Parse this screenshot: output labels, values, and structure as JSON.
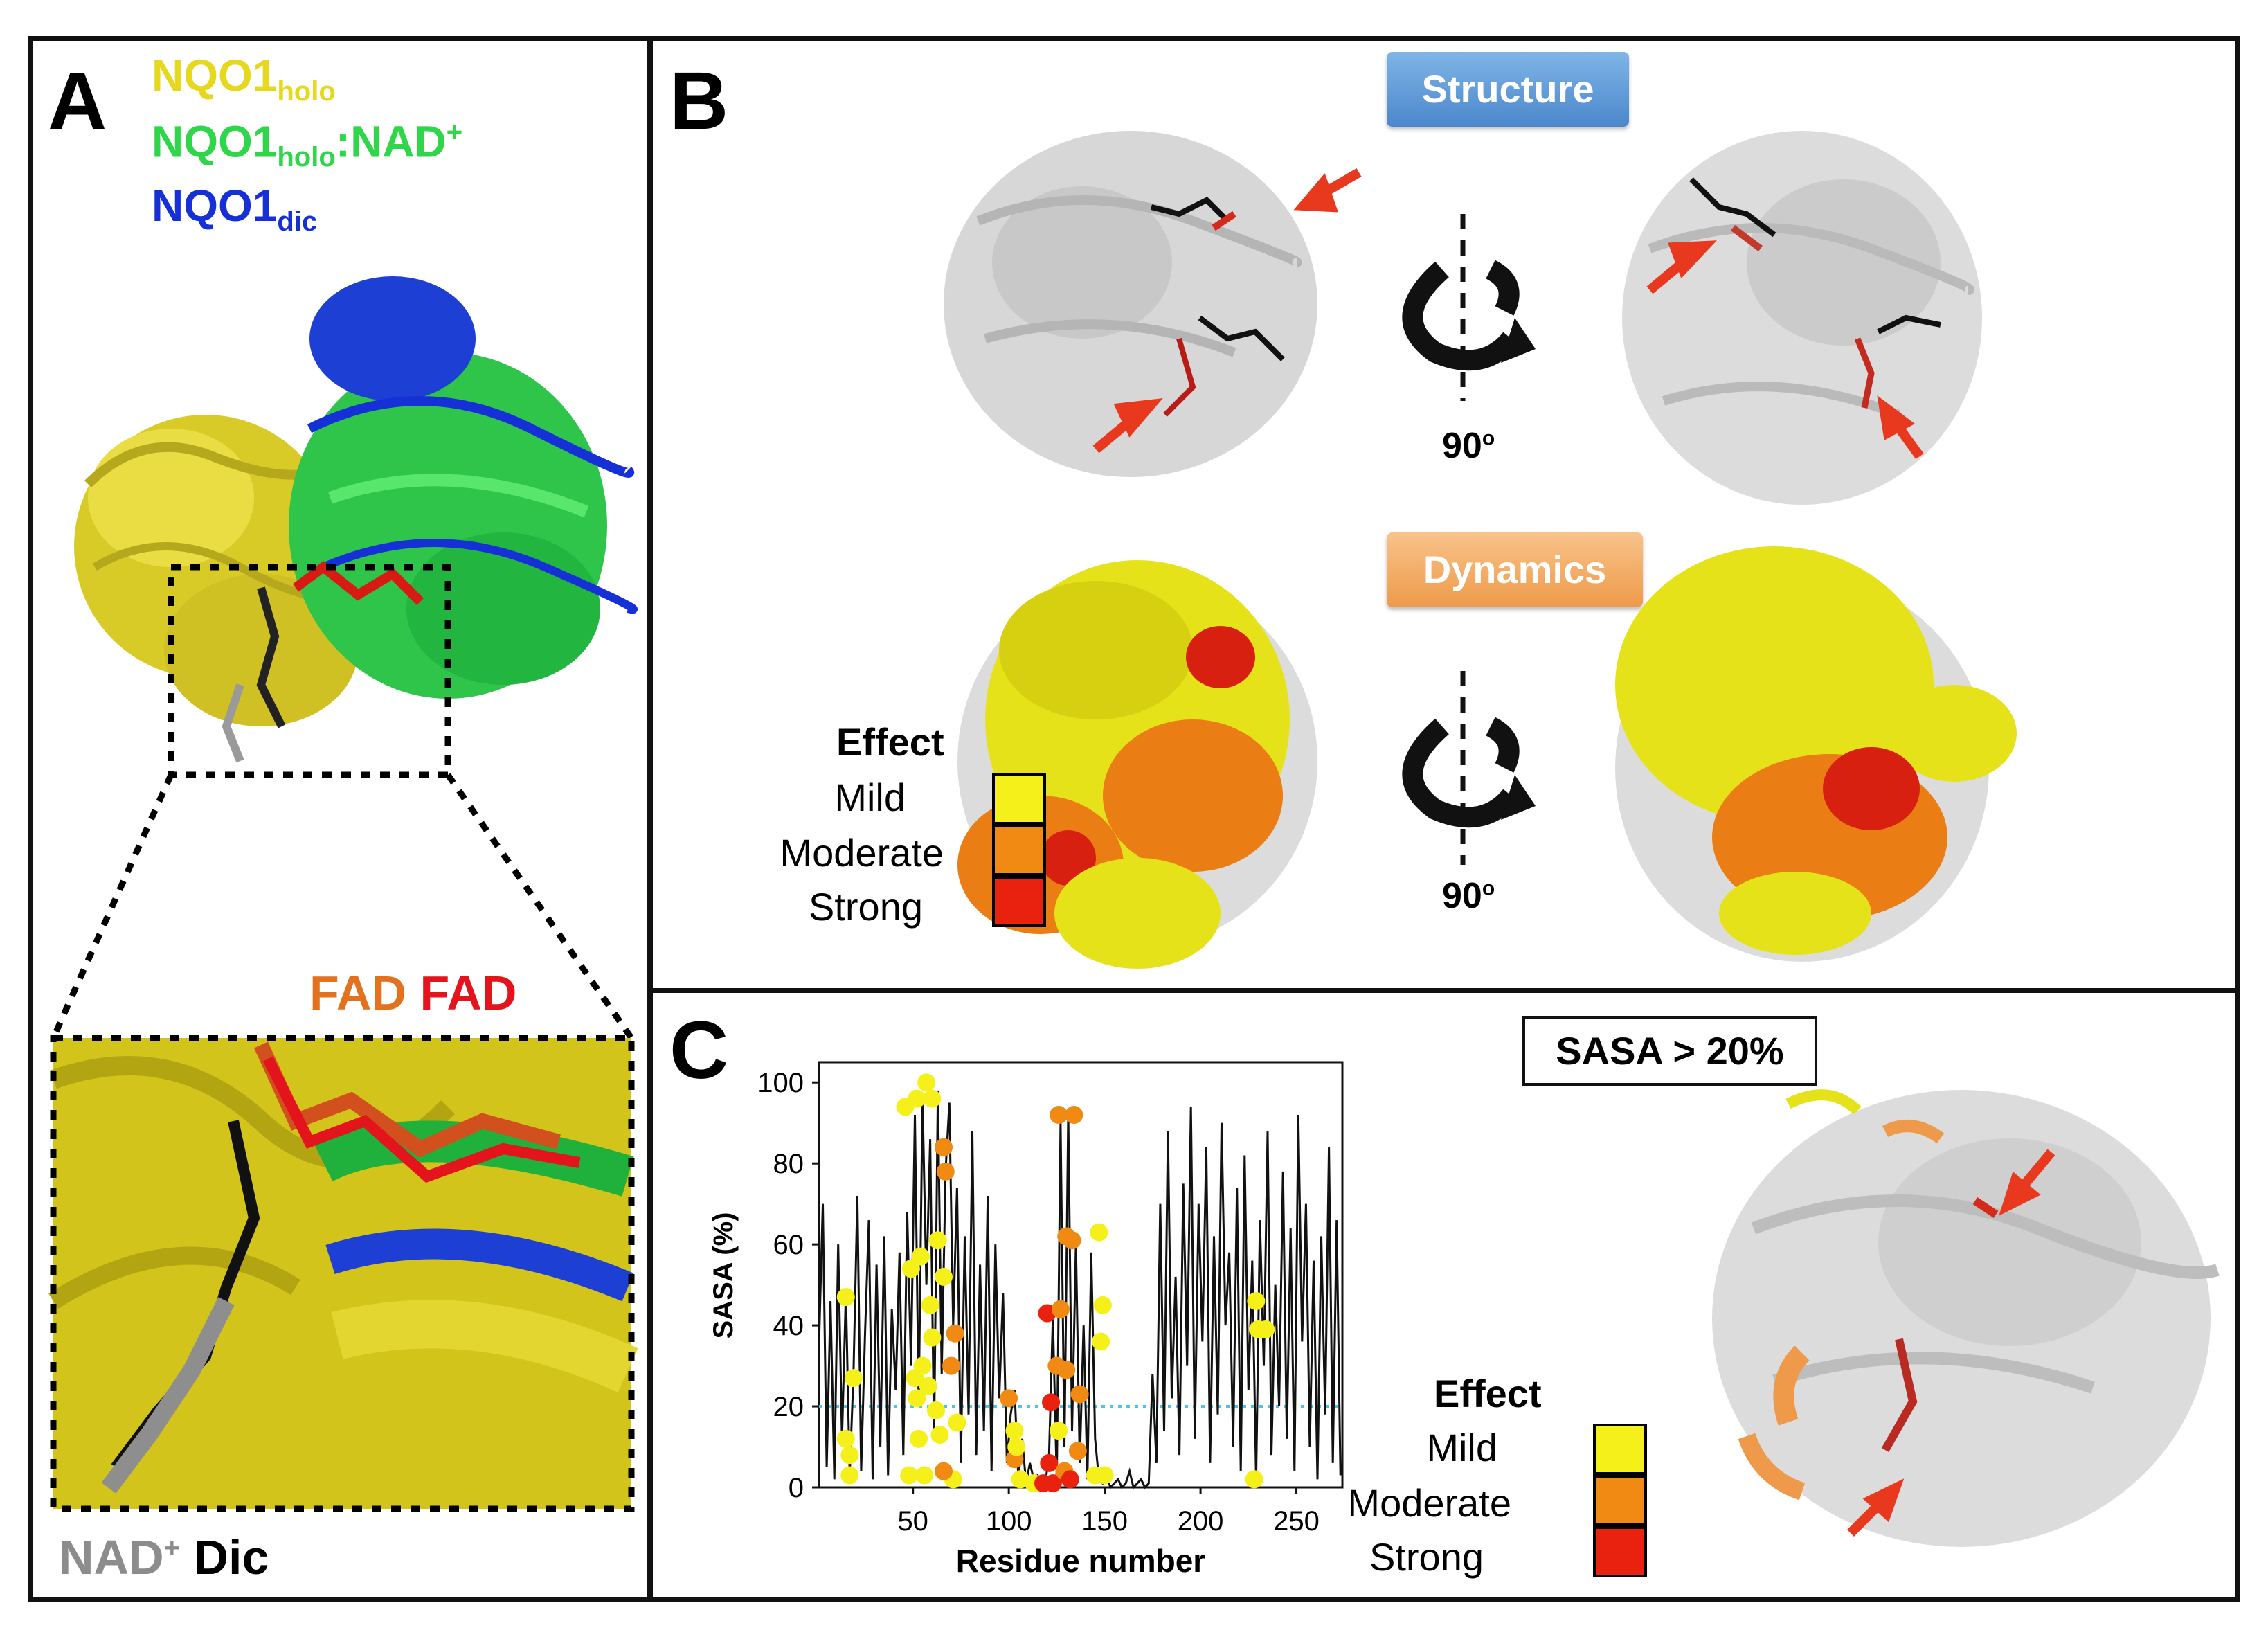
{
  "figure": {
    "panel_a": {
      "label": "A",
      "legend": [
        {
          "main": "NQO1",
          "sub": "holo",
          "tail": "",
          "sup": "",
          "color": "#e6d81e"
        },
        {
          "main": "NQO1",
          "sub": "holo",
          "tail": ":NAD",
          "sup": "+",
          "color": "#2fd64a"
        },
        {
          "main": "NQO1",
          "sub": "dic",
          "tail": "",
          "sup": "",
          "color": "#1530d6"
        }
      ],
      "fad_labels": [
        {
          "text": "FAD",
          "color": "#e4711e"
        },
        {
          "text": "FAD",
          "color": "#e3141c"
        }
      ],
      "bottom_labels": {
        "nad": "NAD",
        "nad_sup": "+",
        "nad_color": "#8c8c8c",
        "dic": "Dic",
        "dic_color": "#000000"
      }
    },
    "panel_b": {
      "label": "B",
      "structure_badge": "Structure",
      "dynamics_badge": "Dynamics",
      "rotation_label": "90",
      "rotation_sup": "o",
      "effect_legend": {
        "title": "Effect",
        "items": [
          {
            "label": "Mild",
            "color": "#f5f01a"
          },
          {
            "label": "Moderate",
            "color": "#f08a12"
          },
          {
            "label": "Strong",
            "color": "#e8220f"
          }
        ]
      }
    },
    "panel_c": {
      "label": "C",
      "sasa_box": "SASA > 20%",
      "effect_legend": {
        "title": "Effect",
        "items": [
          {
            "label": "Mild",
            "color": "#f5f01a"
          },
          {
            "label": "Moderate",
            "color": "#f08a12"
          },
          {
            "label": "Strong",
            "color": "#e8220f"
          }
        ]
      }
    }
  },
  "chart_data": {
    "type": "line",
    "title": "",
    "xlabel": "Residue number",
    "ylabel": "SASA (%)",
    "xlim": [
      1,
      274
    ],
    "ylim": [
      0,
      105
    ],
    "xticks": [
      50,
      100,
      150,
      200,
      250
    ],
    "yticks": [
      0,
      20,
      40,
      60,
      80,
      100
    ],
    "threshold": 20,
    "series": [
      {
        "name": "SASA per residue",
        "color": "#000000",
        "x": [
          1,
          3,
          5,
          7,
          9,
          11,
          13,
          15,
          17,
          19,
          21,
          23,
          25,
          27,
          29,
          31,
          33,
          35,
          37,
          39,
          41,
          43,
          45,
          47,
          49,
          51,
          53,
          55,
          57,
          59,
          61,
          63,
          65,
          67,
          69,
          71,
          73,
          75,
          77,
          79,
          81,
          83,
          85,
          87,
          89,
          91,
          93,
          95,
          97,
          99,
          101,
          103,
          105,
          107,
          109,
          111,
          113,
          115,
          117,
          119,
          121,
          123,
          125,
          127,
          129,
          131,
          133,
          135,
          137,
          139,
          141,
          143,
          145,
          147,
          149,
          151,
          153,
          155,
          157,
          159,
          161,
          163,
          165,
          167,
          169,
          171,
          173,
          175,
          177,
          179,
          181,
          183,
          185,
          187,
          189,
          191,
          193,
          195,
          197,
          199,
          201,
          203,
          205,
          207,
          209,
          211,
          213,
          215,
          217,
          219,
          221,
          223,
          225,
          227,
          229,
          231,
          233,
          235,
          237,
          239,
          241,
          243,
          245,
          247,
          249,
          251,
          253,
          255,
          257,
          259,
          261,
          263,
          265,
          267,
          269,
          271,
          273
        ],
        "values": [
          35,
          70,
          5,
          46,
          2,
          60,
          12,
          48,
          3,
          28,
          72,
          4,
          38,
          66,
          2,
          55,
          10,
          62,
          3,
          44,
          24,
          58,
          8,
          68,
          30,
          92,
          20,
          96,
          50,
          86,
          12,
          98,
          28,
          78,
          95,
          40,
          74,
          6,
          62,
          18,
          88,
          8,
          55,
          14,
          72,
          4,
          60,
          22,
          48,
          6,
          18,
          24,
          2,
          12,
          1,
          6,
          2,
          3,
          0,
          1,
          8,
          42,
          2,
          90,
          10,
          92,
          14,
          60,
          6,
          40,
          2,
          58,
          12,
          2,
          1,
          3,
          0,
          1,
          2,
          0,
          1,
          4,
          0,
          1,
          2,
          0,
          1,
          28,
          6,
          70,
          14,
          88,
          22,
          52,
          8,
          75,
          30,
          94,
          12,
          70,
          36,
          84,
          6,
          62,
          18,
          90,
          40,
          58,
          10,
          74,
          4,
          82,
          24,
          56,
          2,
          66,
          30,
          88,
          8,
          50,
          20,
          78,
          12,
          64,
          4,
          92,
          36,
          70,
          10,
          56,
          2,
          62,
          18,
          84,
          6,
          66,
          3
        ]
      }
    ],
    "effect_points": [
      {
        "x": 15,
        "y": 47,
        "effect": "Mild"
      },
      {
        "x": 15,
        "y": 12,
        "effect": "Mild"
      },
      {
        "x": 17,
        "y": 8,
        "effect": "Mild"
      },
      {
        "x": 19,
        "y": 27,
        "effect": "Mild"
      },
      {
        "x": 17,
        "y": 3,
        "effect": "Mild"
      },
      {
        "x": 46,
        "y": 94,
        "effect": "Mild"
      },
      {
        "x": 52,
        "y": 96,
        "effect": "Mild"
      },
      {
        "x": 57,
        "y": 100,
        "effect": "Mild"
      },
      {
        "x": 60,
        "y": 96,
        "effect": "Mild"
      },
      {
        "x": 49,
        "y": 54,
        "effect": "Mild"
      },
      {
        "x": 54,
        "y": 57,
        "effect": "Mild"
      },
      {
        "x": 51,
        "y": 27,
        "effect": "Mild"
      },
      {
        "x": 55,
        "y": 30,
        "effect": "Mild"
      },
      {
        "x": 52,
        "y": 22,
        "effect": "Mild"
      },
      {
        "x": 53,
        "y": 12,
        "effect": "Mild"
      },
      {
        "x": 59,
        "y": 45,
        "effect": "Mild"
      },
      {
        "x": 60,
        "y": 37,
        "effect": "Mild"
      },
      {
        "x": 58,
        "y": 25,
        "effect": "Mild"
      },
      {
        "x": 62,
        "y": 19,
        "effect": "Mild"
      },
      {
        "x": 64,
        "y": 13,
        "effect": "Mild"
      },
      {
        "x": 63,
        "y": 61,
        "effect": "Mild"
      },
      {
        "x": 66,
        "y": 52,
        "effect": "Mild"
      },
      {
        "x": 48,
        "y": 3,
        "effect": "Mild"
      },
      {
        "x": 56,
        "y": 3,
        "effect": "Mild"
      },
      {
        "x": 71,
        "y": 2,
        "effect": "Mild"
      },
      {
        "x": 73,
        "y": 16,
        "effect": "Mild"
      },
      {
        "x": 66,
        "y": 84,
        "effect": "Moderate"
      },
      {
        "x": 67,
        "y": 78,
        "effect": "Moderate"
      },
      {
        "x": 72,
        "y": 38,
        "effect": "Moderate"
      },
      {
        "x": 70,
        "y": 30,
        "effect": "Moderate"
      },
      {
        "x": 66,
        "y": 4,
        "effect": "Moderate"
      },
      {
        "x": 100,
        "y": 22,
        "effect": "Moderate"
      },
      {
        "x": 103,
        "y": 7,
        "effect": "Moderate"
      },
      {
        "x": 103,
        "y": 14,
        "effect": "Mild"
      },
      {
        "x": 104,
        "y": 10,
        "effect": "Mild"
      },
      {
        "x": 106,
        "y": 2,
        "effect": "Mild"
      },
      {
        "x": 113,
        "y": 1,
        "effect": "Mild"
      },
      {
        "x": 120,
        "y": 43,
        "effect": "Strong"
      },
      {
        "x": 122,
        "y": 21,
        "effect": "Strong"
      },
      {
        "x": 121,
        "y": 6,
        "effect": "Strong"
      },
      {
        "x": 118,
        "y": 1,
        "effect": "Strong"
      },
      {
        "x": 123,
        "y": 1,
        "effect": "Strong"
      },
      {
        "x": 126,
        "y": 92,
        "effect": "Moderate"
      },
      {
        "x": 134,
        "y": 92,
        "effect": "Moderate"
      },
      {
        "x": 130,
        "y": 62,
        "effect": "Moderate"
      },
      {
        "x": 133,
        "y": 61,
        "effect": "Moderate"
      },
      {
        "x": 127,
        "y": 44,
        "effect": "Moderate"
      },
      {
        "x": 125,
        "y": 30,
        "effect": "Moderate"
      },
      {
        "x": 130,
        "y": 29,
        "effect": "Moderate"
      },
      {
        "x": 129,
        "y": 4,
        "effect": "Moderate"
      },
      {
        "x": 136,
        "y": 9,
        "effect": "Moderate"
      },
      {
        "x": 137,
        "y": 23,
        "effect": "Moderate"
      },
      {
        "x": 132,
        "y": 2,
        "effect": "Strong"
      },
      {
        "x": 126,
        "y": 14,
        "effect": "Mild"
      },
      {
        "x": 147,
        "y": 63,
        "effect": "Mild"
      },
      {
        "x": 149,
        "y": 45,
        "effect": "Mild"
      },
      {
        "x": 148,
        "y": 36,
        "effect": "Mild"
      },
      {
        "x": 145,
        "y": 3,
        "effect": "Mild"
      },
      {
        "x": 150,
        "y": 3,
        "effect": "Mild"
      },
      {
        "x": 229,
        "y": 46,
        "effect": "Mild"
      },
      {
        "x": 230,
        "y": 39,
        "effect": "Mild"
      },
      {
        "x": 234,
        "y": 39,
        "effect": "Mild"
      },
      {
        "x": 228,
        "y": 2,
        "effect": "Mild"
      }
    ]
  }
}
